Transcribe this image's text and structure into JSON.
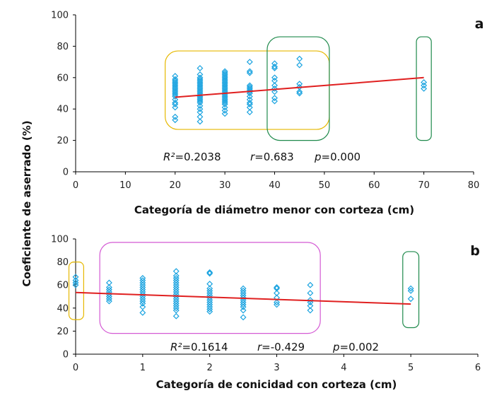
{
  "ylabel": "Coeficiente de aserrado (%)",
  "chart_data": [
    {
      "type": "scatter",
      "panel_label": "a",
      "xlabel": "Categoría de diámetro menor con corteza (cm)",
      "ylabel": "Coeficiente de aserrado (%)",
      "xlim": [
        0,
        80
      ],
      "ylim": [
        0,
        100
      ],
      "xticks": [
        0,
        10,
        20,
        30,
        40,
        50,
        60,
        70,
        80
      ],
      "yticks": [
        0,
        20,
        40,
        60,
        80,
        100
      ],
      "marker_color": "#1aa3e0",
      "trend_color": "#e02020",
      "trendline": {
        "x": [
          20,
          70
        ],
        "y": [
          47.5,
          60.0
        ]
      },
      "stats": {
        "r2_label": "R²",
        "r2": "=0.2038",
        "r_label": "r",
        "r": "=0.683",
        "p_label": "p",
        "p": "=0.000"
      },
      "highlight_boxes": [
        {
          "color": "#e6b800",
          "x_range": [
            18,
            51
          ],
          "y_range": [
            27,
            77
          ]
        },
        {
          "color": "#1f8a4c",
          "x_range": [
            38.5,
            51
          ],
          "y_range": [
            20,
            86
          ]
        },
        {
          "color": "#1f8a4c",
          "x_range": [
            68.5,
            71.5
          ],
          "y_range": [
            20,
            86
          ]
        }
      ],
      "series": [
        {
          "x": 20,
          "y": [
            33,
            35,
            41,
            43,
            44,
            46,
            48,
            49,
            50,
            51,
            52,
            53,
            54,
            55,
            56,
            57,
            58,
            59,
            61
          ]
        },
        {
          "x": 25,
          "y": [
            32,
            35,
            38,
            40,
            42,
            44,
            45,
            46,
            47,
            48,
            49,
            50,
            51,
            52,
            53,
            54,
            55,
            56,
            57,
            58,
            59,
            60,
            62,
            66
          ]
        },
        {
          "x": 30,
          "y": [
            37,
            39,
            41,
            43,
            44,
            45,
            46,
            47,
            48,
            49,
            50,
            51,
            52,
            53,
            54,
            55,
            56,
            57,
            58,
            59,
            60,
            61,
            62,
            63,
            64
          ]
        },
        {
          "x": 35,
          "y": [
            38,
            41,
            43,
            44,
            46,
            48,
            50,
            51,
            52,
            53,
            54,
            55,
            63,
            64,
            70
          ]
        },
        {
          "x": 40,
          "y": [
            45,
            47,
            51,
            53,
            55,
            58,
            60,
            66,
            67,
            69
          ]
        },
        {
          "x": 45,
          "y": [
            50,
            51,
            54,
            56,
            68,
            72
          ]
        },
        {
          "x": 70,
          "y": [
            53,
            55,
            57
          ]
        }
      ]
    },
    {
      "type": "scatter",
      "panel_label": "b",
      "xlabel": "Categoría de conicidad con corteza (cm)",
      "ylabel": "Coeficiente de aserrado (%)",
      "xlim": [
        0,
        6
      ],
      "ylim": [
        0,
        100
      ],
      "xticks": [
        0,
        1,
        2,
        3,
        4,
        5,
        6
      ],
      "yticks": [
        0,
        20,
        40,
        60,
        80,
        100
      ],
      "marker_color": "#1aa3e0",
      "trend_color": "#e02020",
      "trendline": {
        "x": [
          0,
          5
        ],
        "y": [
          53.5,
          43.5
        ]
      },
      "stats": {
        "r2_label": "R²",
        "r2": "=0.1614",
        "r_label": "r",
        "r": "=-0.429",
        "p_label": "p",
        "p": "=0.002"
      },
      "highlight_boxes": [
        {
          "color": "#e6b800",
          "x_range": [
            -0.1,
            0.12
          ],
          "y_range": [
            30,
            80
          ]
        },
        {
          "color": "#d45ad4",
          "x_range": [
            0.36,
            3.65
          ],
          "y_range": [
            18,
            97
          ]
        },
        {
          "color": "#1f8a4c",
          "x_range": [
            4.88,
            5.12
          ],
          "y_range": [
            23,
            89
          ]
        }
      ],
      "series": [
        {
          "x": 0,
          "y": [
            60,
            62,
            64,
            67
          ]
        },
        {
          "x": 0.5,
          "y": [
            46,
            48,
            50,
            52,
            54,
            56,
            58,
            62
          ]
        },
        {
          "x": 1,
          "y": [
            36,
            41,
            44,
            46,
            48,
            50,
            52,
            54,
            56,
            58,
            60,
            62,
            64,
            66
          ]
        },
        {
          "x": 1.5,
          "y": [
            33,
            38,
            40,
            42,
            44,
            46,
            48,
            50,
            52,
            54,
            56,
            58,
            60,
            62,
            64,
            66,
            68,
            72
          ]
        },
        {
          "x": 2,
          "y": [
            37,
            39,
            41,
            43,
            45,
            47,
            49,
            51,
            53,
            55,
            57,
            61,
            70,
            71
          ]
        },
        {
          "x": 2.5,
          "y": [
            32,
            38,
            41,
            43,
            45,
            47,
            49,
            51,
            53,
            55,
            57
          ]
        },
        {
          "x": 3,
          "y": [
            43,
            45,
            49,
            53,
            57,
            58
          ]
        },
        {
          "x": 3.5,
          "y": [
            38,
            42,
            45,
            47,
            53,
            60
          ]
        },
        {
          "x": 5,
          "y": [
            48,
            55,
            57
          ]
        }
      ]
    }
  ]
}
